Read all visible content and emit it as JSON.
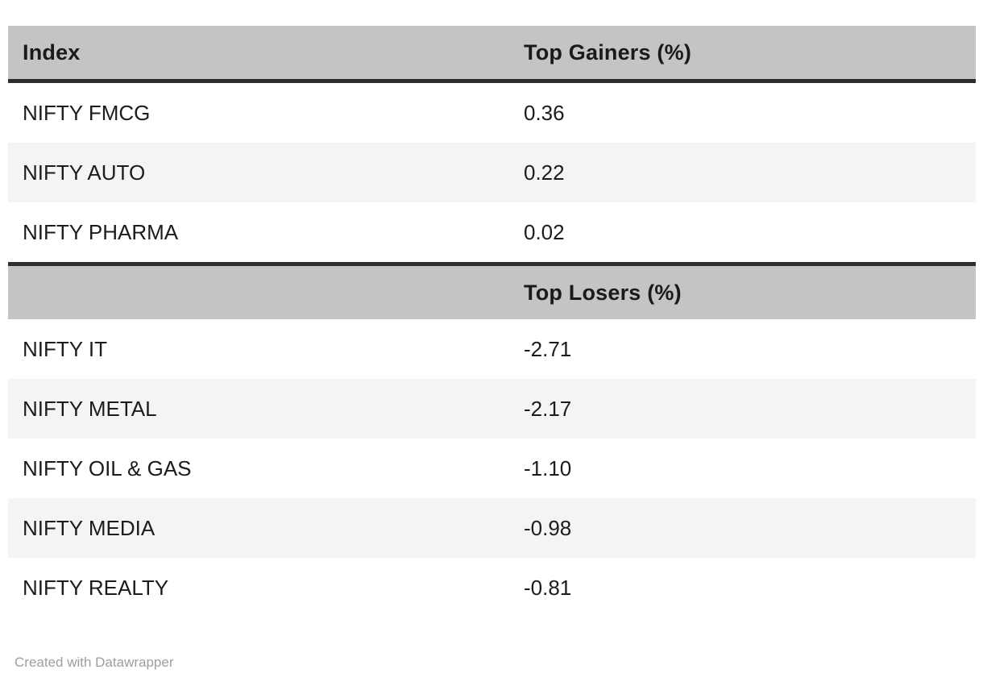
{
  "chart_data": {
    "type": "table",
    "sections": [
      {
        "name": "top_gainers",
        "header_left": "Index",
        "header_right": "Top Gainers (%)",
        "rows": [
          {
            "label": "NIFTY FMCG",
            "value": "0.36"
          },
          {
            "label": "NIFTY AUTO",
            "value": "0.22"
          },
          {
            "label": "NIFTY PHARMA",
            "value": "0.02"
          }
        ]
      },
      {
        "name": "top_losers",
        "header_left": "",
        "header_right": "Top Losers (%)",
        "rows": [
          {
            "label": "NIFTY IT",
            "value": "-2.71"
          },
          {
            "label": "NIFTY METAL",
            "value": "-2.17"
          },
          {
            "label": "NIFTY OIL & GAS",
            "value": "-1.10"
          },
          {
            "label": "NIFTY MEDIA",
            "value": "-0.98"
          },
          {
            "label": "NIFTY REALTY",
            "value": "-0.81"
          }
        ]
      }
    ],
    "layout_hints": {
      "zebra_striping": true,
      "value_column_x_fraction": 0.52
    }
  },
  "footer": {
    "attribution": "Created with Datawrapper"
  },
  "colors": {
    "header_bg": "#c4c4c4",
    "section_divider": "#2e2e2e",
    "alt_row_bg": "#f4f4f4",
    "body_text": "#1c1c1c",
    "footer_text": "#9e9e9e",
    "background": "#ffffff"
  }
}
